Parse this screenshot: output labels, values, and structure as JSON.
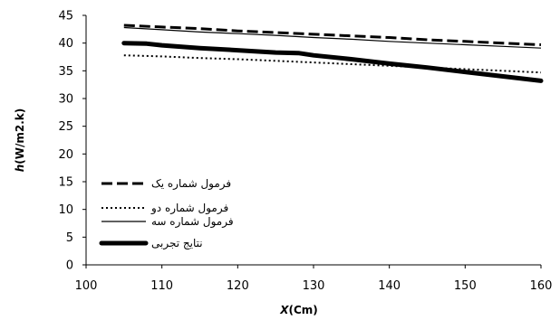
{
  "chart_data": {
    "type": "line",
    "xlabel_bold": "X",
    "xlabel_rest": "(Cm)",
    "ylabel_bold": "h",
    "ylabel_rest": "(W/m2.k)",
    "xlim": [
      100,
      160
    ],
    "ylim": [
      0,
      45
    ],
    "xticks": [
      "100",
      "110",
      "120",
      "130",
      "140",
      "150",
      "160"
    ],
    "yticks": [
      "0",
      "5",
      "10",
      "15",
      "20",
      "25",
      "30",
      "35",
      "40",
      "45"
    ],
    "grid": false,
    "legend_position": "bottom-left",
    "series": [
      {
        "name": "فرمول شماره یک",
        "style": "dashed",
        "x": [
          105,
          110,
          115,
          120,
          125,
          130,
          135,
          140,
          145,
          150,
          155,
          160
        ],
        "y": [
          43.2,
          42.9,
          42.6,
          42.2,
          41.9,
          41.6,
          41.3,
          41.0,
          40.6,
          40.3,
          40.0,
          39.7
        ]
      },
      {
        "name": "فرمول شماره دو",
        "style": "dotted",
        "x": [
          105,
          110,
          115,
          120,
          125,
          130,
          135,
          140,
          145,
          150,
          155,
          160
        ],
        "y": [
          37.8,
          37.6,
          37.3,
          37.1,
          36.8,
          36.5,
          36.2,
          35.9,
          35.6,
          35.3,
          35.0,
          34.7
        ]
      },
      {
        "name": "فرمول شماره سه",
        "style": "solid-thin",
        "x": [
          105,
          110,
          115,
          120,
          125,
          130,
          135,
          140,
          145,
          150,
          155,
          160
        ],
        "y": [
          42.8,
          42.4,
          42.0,
          41.7,
          41.4,
          41.0,
          40.7,
          40.3,
          40.0,
          39.7,
          39.4,
          39.1
        ]
      },
      {
        "name": "نتایج تجربی",
        "style": "solid-thick",
        "x": [
          105,
          108,
          110,
          115,
          120,
          125,
          128,
          130,
          135,
          140,
          145,
          150,
          155,
          160
        ],
        "y": [
          40.0,
          39.9,
          39.6,
          39.1,
          38.7,
          38.3,
          38.2,
          37.8,
          37.1,
          36.3,
          35.6,
          34.8,
          34.0,
          33.2
        ]
      }
    ]
  }
}
